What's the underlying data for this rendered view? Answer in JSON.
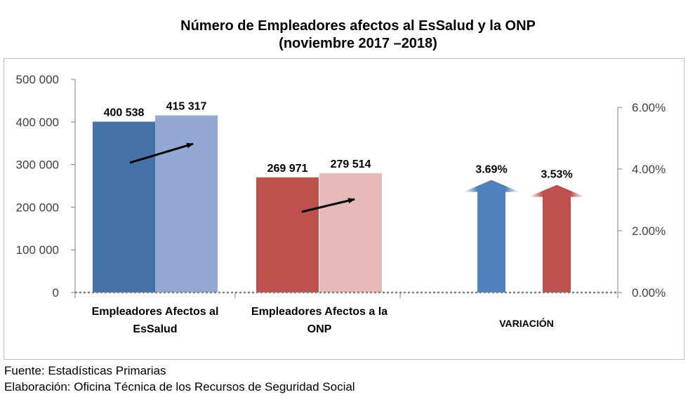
{
  "chart_data": {
    "type": "bar",
    "title": "Número de Empleadores afectos al EsSalud y la ONP",
    "subtitle": "(noviembre 2017 –2018)",
    "categories": [
      "Empleadores Afectos al EsSalud",
      "Empleadores Afectos a la ONP",
      "VARIACIÓN"
    ],
    "category_lines": [
      [
        "Empleadores Afectos al",
        "EsSalud"
      ],
      [
        "Empleadores Afectos a la",
        "ONP"
      ],
      [
        "VARIACIÓN"
      ]
    ],
    "groups": [
      {
        "name": "Empleadores Afectos al EsSalud",
        "values": [
          400538,
          415317
        ],
        "labels": [
          "400 538",
          "415 317"
        ],
        "colors": [
          "#4472a8",
          "#93a9d3"
        ]
      },
      {
        "name": "Empleadores Afectos a la ONP",
        "values": [
          269971,
          279514
        ],
        "labels": [
          "269 971",
          "279 514"
        ],
        "colors": [
          "#c0504d",
          "#e6b9b8"
        ]
      }
    ],
    "variation": [
      {
        "name": "EsSalud",
        "value": 3.69,
        "label": "3.69%",
        "color": "#4f81bd"
      },
      {
        "name": "ONP",
        "value": 3.53,
        "label": "3.53%",
        "color": "#c0504d"
      }
    ],
    "y_left": {
      "min": 0,
      "max": 500000,
      "ticks": [
        0,
        100000,
        200000,
        300000,
        400000,
        500000
      ],
      "tick_labels": [
        "0",
        "100 000",
        "200 000",
        "300 000",
        "400 000",
        "500 000"
      ]
    },
    "y_right": {
      "min": 0,
      "max": 6,
      "ticks": [
        0,
        2,
        4,
        6
      ],
      "tick_labels": [
        "0.00%",
        "2.00%",
        "4.00%",
        "6.00%"
      ]
    },
    "grid": false,
    "legend": "none"
  },
  "footer": {
    "source": "Fuente: Estadísticas Primarias",
    "elaboration": "Elaboración: Oficina Técnica de los Recursos de Seguridad Social"
  }
}
